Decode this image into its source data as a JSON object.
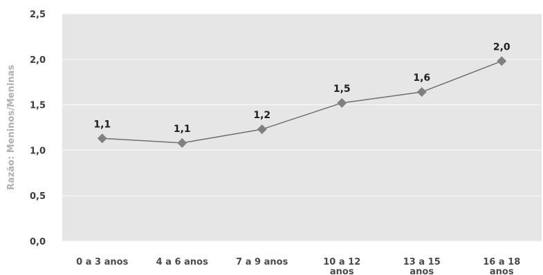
{
  "chart_data": {
    "type": "line",
    "title": "",
    "xlabel": "",
    "ylabel": "Razão: Meninos/Meninas",
    "ylim": [
      0,
      2.5
    ],
    "yticks": [
      "0,0",
      "0,5",
      "1,0",
      "1,5",
      "2,0",
      "2,5"
    ],
    "categories": [
      [
        "0 a 3 anos"
      ],
      [
        "4 a 6 anos"
      ],
      [
        "7 a 9 anos"
      ],
      [
        "10 a 12",
        "anos"
      ],
      [
        "13 a 15",
        "anos"
      ],
      [
        "16 a 18",
        "anos"
      ]
    ],
    "values": [
      1.13,
      1.08,
      1.23,
      1.52,
      1.64,
      1.98
    ],
    "data_labels": [
      "1,1",
      "1,1",
      "1,2",
      "1,5",
      "1,6",
      "2,0"
    ],
    "grid": true,
    "colors": {
      "plot_background": "#e6e6e6",
      "grid": "#f7f7f7",
      "line": "#6e6e6e",
      "marker": "#808080"
    }
  }
}
